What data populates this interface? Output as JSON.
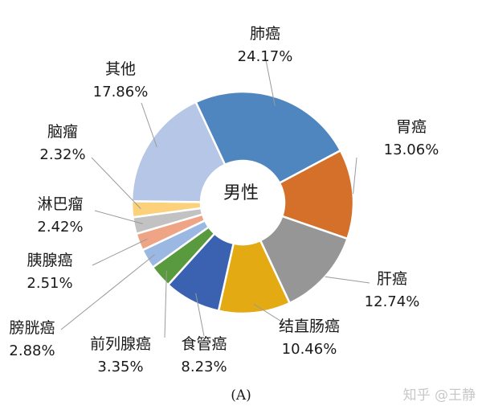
{
  "chart_data": {
    "type": "pie",
    "center_label": "男性",
    "caption": "(A)",
    "slices": [
      {
        "label": "肺癌",
        "value": 24.17,
        "value_text": "24.17%",
        "color": "#4f86bf"
      },
      {
        "label": "胃癌",
        "value": 13.06,
        "value_text": "13.06%",
        "color": "#d4702a"
      },
      {
        "label": "肝癌",
        "value": 12.74,
        "value_text": "12.74%",
        "color": "#969696"
      },
      {
        "label": "结直肠癌",
        "value": 10.46,
        "value_text": "10.46%",
        "color": "#e4aa14"
      },
      {
        "label": "食管癌",
        "value": 8.23,
        "value_text": "8.23%",
        "color": "#3a62b0"
      },
      {
        "label": "前列腺癌",
        "value": 3.35,
        "value_text": "3.35%",
        "color": "#5a9a3e"
      },
      {
        "label": "膀胱癌",
        "value": 2.88,
        "value_text": "2.88%",
        "color": "#9bb8e2"
      },
      {
        "label": "胰腺癌",
        "value": 2.51,
        "value_text": "2.51%",
        "color": "#efa585"
      },
      {
        "label": "淋巴瘤",
        "value": 2.42,
        "value_text": "2.42%",
        "color": "#c2c2c2"
      },
      {
        "label": "脑瘤",
        "value": 2.32,
        "value_text": "2.32%",
        "color": "#fbd17c"
      },
      {
        "label": "其他",
        "value": 17.86,
        "value_text": "17.86%",
        "color": "#b5c6e6"
      }
    ]
  },
  "watermark": "知乎 @王静"
}
